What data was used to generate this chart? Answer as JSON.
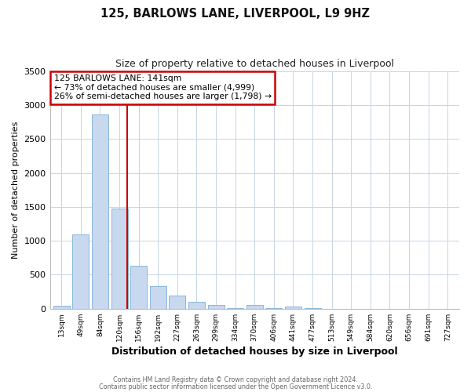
{
  "title": "125, BARLOWS LANE, LIVERPOOL, L9 9HZ",
  "subtitle": "Size of property relative to detached houses in Liverpool",
  "xlabel": "Distribution of detached houses by size in Liverpool",
  "ylabel": "Number of detached properties",
  "bar_color": "#c8d8ef",
  "bar_edge_color": "#7bafd4",
  "background_color": "#ffffff",
  "grid_color": "#c5d5e5",
  "annotation_line_color": "#cc0000",
  "annotation_box_edge_color": "#cc0000",
  "categories": [
    "13sqm",
    "49sqm",
    "84sqm",
    "120sqm",
    "156sqm",
    "192sqm",
    "227sqm",
    "263sqm",
    "299sqm",
    "334sqm",
    "370sqm",
    "406sqm",
    "441sqm",
    "477sqm",
    "513sqm",
    "549sqm",
    "584sqm",
    "620sqm",
    "656sqm",
    "691sqm",
    "727sqm"
  ],
  "values": [
    40,
    1090,
    2860,
    1480,
    630,
    330,
    190,
    100,
    60,
    12,
    55,
    10,
    30,
    5,
    2,
    1,
    0,
    0,
    0,
    0,
    0
  ],
  "ylim": [
    0,
    3500
  ],
  "yticks": [
    0,
    500,
    1000,
    1500,
    2000,
    2500,
    3000,
    3500
  ],
  "property_label": "125 BARLOWS LANE: 141sqm",
  "annotation_line1": "← 73% of detached houses are smaller (4,999)",
  "annotation_line2": "26% of semi-detached houses are larger (1,798) →",
  "vline_position": 3.42,
  "footer_line1": "Contains HM Land Registry data © Crown copyright and database right 2024.",
  "footer_line2": "Contains public sector information licensed under the Open Government Licence v3.0."
}
